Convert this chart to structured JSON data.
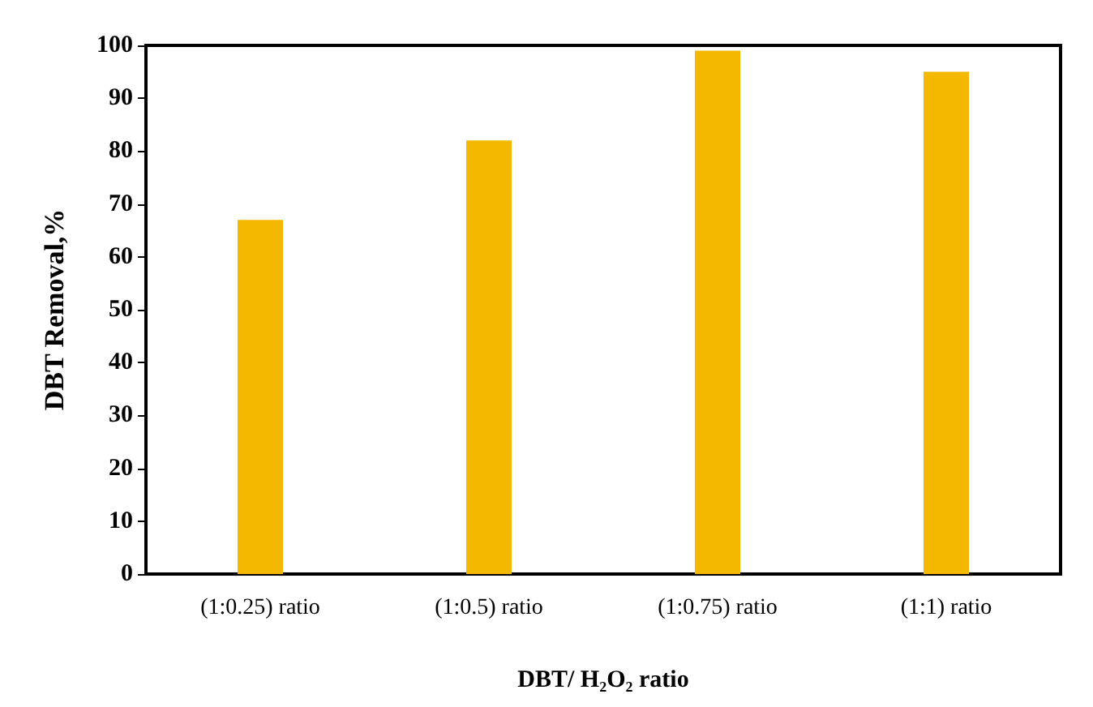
{
  "chart_data": {
    "type": "bar",
    "xlabel": "DBT/ H₂O₂ ratio",
    "ylabel": "DBT Removal,%",
    "categories": [
      "(1:0.25) ratio",
      "(1:0.5) ratio",
      "(1:0.75) ratio",
      "(1:1) ratio"
    ],
    "values": [
      67,
      82,
      99,
      95
    ],
    "color": "#f5b800",
    "ylim": [
      0,
      100
    ],
    "yticks": [
      0,
      10,
      20,
      30,
      40,
      50,
      60,
      70,
      80,
      90,
      100
    ],
    "grid": false
  }
}
